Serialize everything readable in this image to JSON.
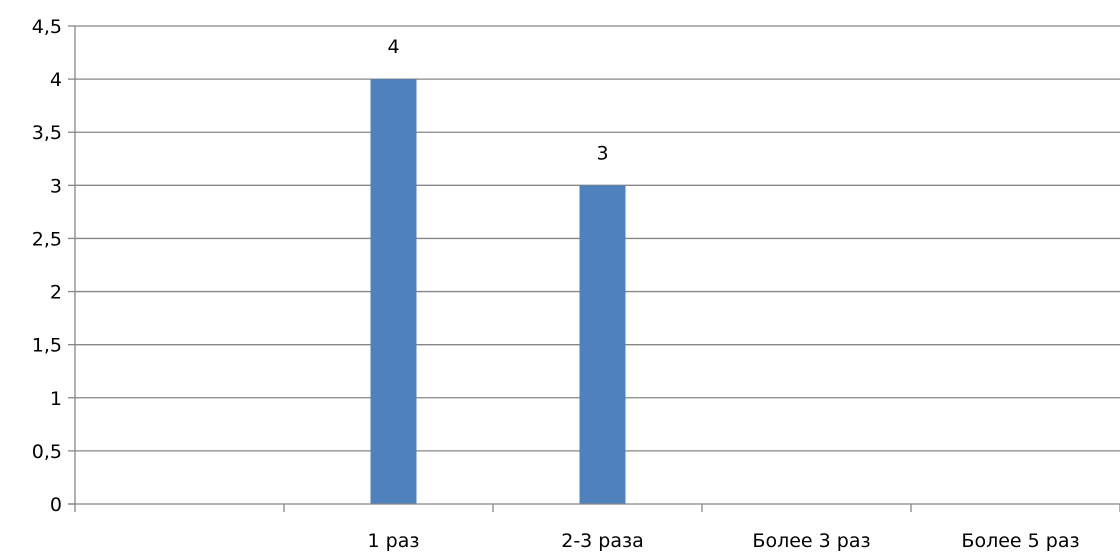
{
  "chart_data": {
    "type": "bar",
    "title": "",
    "xlabel": "",
    "ylabel": "",
    "categories": [
      "",
      "1 раз",
      "2-3 раза",
      "Более 3 раз",
      "Более 5 раз"
    ],
    "values": [
      null,
      4,
      3,
      null,
      null
    ],
    "data_labels": [
      "",
      "4",
      "3",
      "",
      ""
    ],
    "ylim": [
      0,
      4.5
    ],
    "yticks": [
      0,
      0.5,
      1,
      1.5,
      2,
      2.5,
      3,
      3.5,
      4,
      4.5
    ],
    "ytick_labels": [
      "0",
      "0,5",
      "1",
      "1,5",
      "2",
      "2,5",
      "3",
      "3,5",
      "4",
      "4,5"
    ],
    "grid": true,
    "legend": "none",
    "bar_color": "#4F81BD",
    "grid_color": "#868686"
  }
}
